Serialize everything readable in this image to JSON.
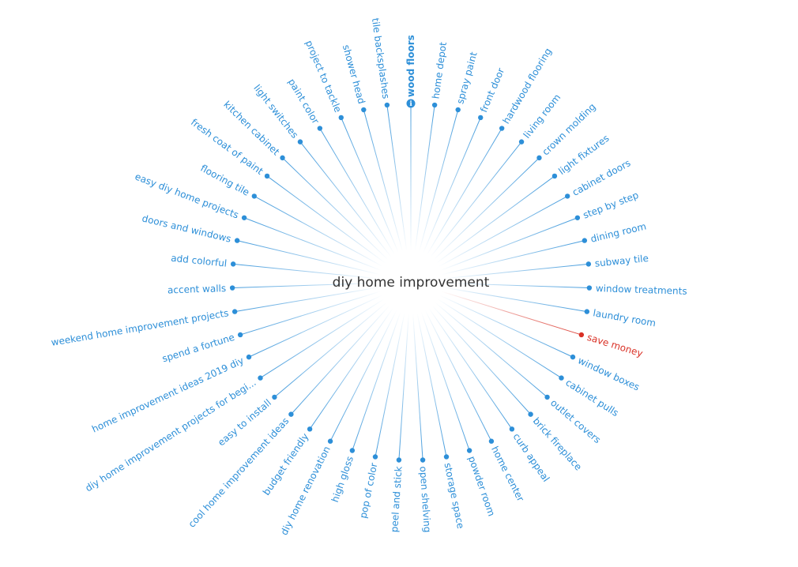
{
  "center": {
    "label": "diy home improvement"
  },
  "colors": {
    "spoke": "#2d8fd8",
    "highlight": "#d93025",
    "center_text": "#333333"
  },
  "spokes": [
    {
      "label": "wood floors",
      "bold": true,
      "info_icon": true
    },
    {
      "label": "home depot"
    },
    {
      "label": "spray paint"
    },
    {
      "label": "front door"
    },
    {
      "label": "hardwood flooring"
    },
    {
      "label": "living room"
    },
    {
      "label": "crown molding"
    },
    {
      "label": "light fixtures"
    },
    {
      "label": "cabinet doors"
    },
    {
      "label": "step by step"
    },
    {
      "label": "dining room"
    },
    {
      "label": "subway tile"
    },
    {
      "label": "window treatments"
    },
    {
      "label": "laundry room"
    },
    {
      "label": "save money",
      "highlight": true
    },
    {
      "label": "window boxes"
    },
    {
      "label": "cabinet pulls"
    },
    {
      "label": "outlet covers"
    },
    {
      "label": "brick fireplace"
    },
    {
      "label": "curb appeal"
    },
    {
      "label": "home center"
    },
    {
      "label": "powder room"
    },
    {
      "label": "storage space"
    },
    {
      "label": "open shelving"
    },
    {
      "label": "peel and stick"
    },
    {
      "label": "pop of color"
    },
    {
      "label": "high gloss"
    },
    {
      "label": "diy home renovation"
    },
    {
      "label": "budget friendly"
    },
    {
      "label": "cool home improvement ideas"
    },
    {
      "label": "easy to install"
    },
    {
      "label": "diy home improvement projects for begi..."
    },
    {
      "label": "home improvement ideas 2019 diy"
    },
    {
      "label": "spend a fortune"
    },
    {
      "label": "weekend home improvement projects"
    },
    {
      "label": "accent walls"
    },
    {
      "label": "add colorful"
    },
    {
      "label": "doors and windows"
    },
    {
      "label": "easy diy home projects"
    },
    {
      "label": "flooring tile"
    },
    {
      "label": "fresh coat of paint"
    },
    {
      "label": "kitchen cabinet"
    },
    {
      "label": "light switches"
    },
    {
      "label": "paint color"
    },
    {
      "label": "project to tackle"
    },
    {
      "label": "shower head"
    },
    {
      "label": "tile backsplashes"
    }
  ]
}
